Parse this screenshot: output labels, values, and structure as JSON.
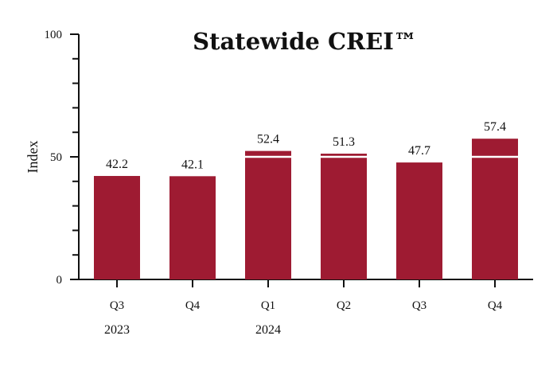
{
  "chart_data": {
    "type": "bar",
    "title": "Statewide CREI™",
    "ylabel": "Index",
    "xlabel": "",
    "ylim": [
      0,
      100
    ],
    "yticks": [
      0,
      50,
      100
    ],
    "y_minor_step": 10,
    "reference_line": 50,
    "categories": [
      "Q3",
      "Q4",
      "Q1",
      "Q2",
      "Q3",
      "Q4"
    ],
    "year_labels": [
      "2023",
      "",
      "2024",
      "",
      "",
      ""
    ],
    "values": [
      42.2,
      42.1,
      52.4,
      51.3,
      47.7,
      57.4
    ],
    "data_labels": [
      "42.2",
      "42.1",
      "52.4",
      "51.3",
      "47.7",
      "57.4"
    ],
    "bar_color": "#9E1B32",
    "reference_line_color": "#ffffff",
    "grid": false,
    "legend": "none"
  }
}
